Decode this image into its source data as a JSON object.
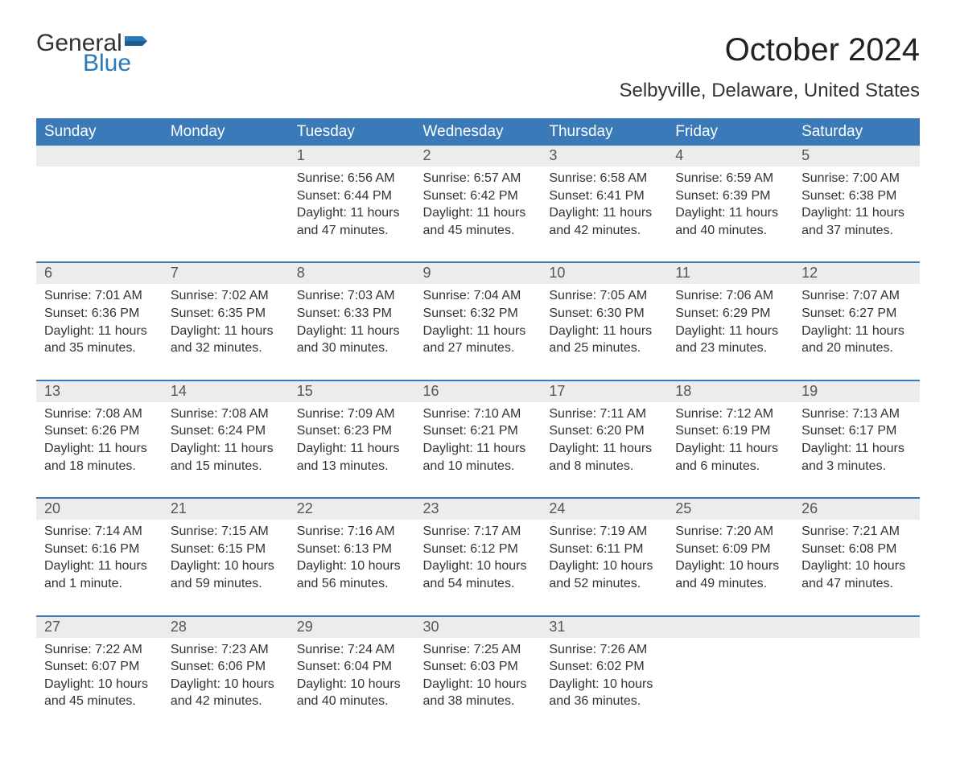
{
  "logo": {
    "text1": "General",
    "text2": "Blue",
    "flag_color": "#2a7ab9",
    "text1_color": "#333333"
  },
  "title": "October 2024",
  "location": "Selbyville, Delaware, United States",
  "colors": {
    "header_bg": "#3b7ab8",
    "header_text": "#ffffff",
    "row_border": "#3b7ab8",
    "daynum_bg": "#ececec",
    "body_text": "#333333"
  },
  "typography": {
    "title_fontsize": 40,
    "location_fontsize": 24,
    "header_fontsize": 19,
    "daynum_fontsize": 18,
    "body_fontsize": 16
  },
  "day_headers": [
    "Sunday",
    "Monday",
    "Tuesday",
    "Wednesday",
    "Thursday",
    "Friday",
    "Saturday"
  ],
  "weeks": [
    [
      null,
      null,
      {
        "n": "1",
        "sunrise": "6:56 AM",
        "sunset": "6:44 PM",
        "daylight": "11 hours and 47 minutes."
      },
      {
        "n": "2",
        "sunrise": "6:57 AM",
        "sunset": "6:42 PM",
        "daylight": "11 hours and 45 minutes."
      },
      {
        "n": "3",
        "sunrise": "6:58 AM",
        "sunset": "6:41 PM",
        "daylight": "11 hours and 42 minutes."
      },
      {
        "n": "4",
        "sunrise": "6:59 AM",
        "sunset": "6:39 PM",
        "daylight": "11 hours and 40 minutes."
      },
      {
        "n": "5",
        "sunrise": "7:00 AM",
        "sunset": "6:38 PM",
        "daylight": "11 hours and 37 minutes."
      }
    ],
    [
      {
        "n": "6",
        "sunrise": "7:01 AM",
        "sunset": "6:36 PM",
        "daylight": "11 hours and 35 minutes."
      },
      {
        "n": "7",
        "sunrise": "7:02 AM",
        "sunset": "6:35 PM",
        "daylight": "11 hours and 32 minutes."
      },
      {
        "n": "8",
        "sunrise": "7:03 AM",
        "sunset": "6:33 PM",
        "daylight": "11 hours and 30 minutes."
      },
      {
        "n": "9",
        "sunrise": "7:04 AM",
        "sunset": "6:32 PM",
        "daylight": "11 hours and 27 minutes."
      },
      {
        "n": "10",
        "sunrise": "7:05 AM",
        "sunset": "6:30 PM",
        "daylight": "11 hours and 25 minutes."
      },
      {
        "n": "11",
        "sunrise": "7:06 AM",
        "sunset": "6:29 PM",
        "daylight": "11 hours and 23 minutes."
      },
      {
        "n": "12",
        "sunrise": "7:07 AM",
        "sunset": "6:27 PM",
        "daylight": "11 hours and 20 minutes."
      }
    ],
    [
      {
        "n": "13",
        "sunrise": "7:08 AM",
        "sunset": "6:26 PM",
        "daylight": "11 hours and 18 minutes."
      },
      {
        "n": "14",
        "sunrise": "7:08 AM",
        "sunset": "6:24 PM",
        "daylight": "11 hours and 15 minutes."
      },
      {
        "n": "15",
        "sunrise": "7:09 AM",
        "sunset": "6:23 PM",
        "daylight": "11 hours and 13 minutes."
      },
      {
        "n": "16",
        "sunrise": "7:10 AM",
        "sunset": "6:21 PM",
        "daylight": "11 hours and 10 minutes."
      },
      {
        "n": "17",
        "sunrise": "7:11 AM",
        "sunset": "6:20 PM",
        "daylight": "11 hours and 8 minutes."
      },
      {
        "n": "18",
        "sunrise": "7:12 AM",
        "sunset": "6:19 PM",
        "daylight": "11 hours and 6 minutes."
      },
      {
        "n": "19",
        "sunrise": "7:13 AM",
        "sunset": "6:17 PM",
        "daylight": "11 hours and 3 minutes."
      }
    ],
    [
      {
        "n": "20",
        "sunrise": "7:14 AM",
        "sunset": "6:16 PM",
        "daylight": "11 hours and 1 minute."
      },
      {
        "n": "21",
        "sunrise": "7:15 AM",
        "sunset": "6:15 PM",
        "daylight": "10 hours and 59 minutes."
      },
      {
        "n": "22",
        "sunrise": "7:16 AM",
        "sunset": "6:13 PM",
        "daylight": "10 hours and 56 minutes."
      },
      {
        "n": "23",
        "sunrise": "7:17 AM",
        "sunset": "6:12 PM",
        "daylight": "10 hours and 54 minutes."
      },
      {
        "n": "24",
        "sunrise": "7:19 AM",
        "sunset": "6:11 PM",
        "daylight": "10 hours and 52 minutes."
      },
      {
        "n": "25",
        "sunrise": "7:20 AM",
        "sunset": "6:09 PM",
        "daylight": "10 hours and 49 minutes."
      },
      {
        "n": "26",
        "sunrise": "7:21 AM",
        "sunset": "6:08 PM",
        "daylight": "10 hours and 47 minutes."
      }
    ],
    [
      {
        "n": "27",
        "sunrise": "7:22 AM",
        "sunset": "6:07 PM",
        "daylight": "10 hours and 45 minutes."
      },
      {
        "n": "28",
        "sunrise": "7:23 AM",
        "sunset": "6:06 PM",
        "daylight": "10 hours and 42 minutes."
      },
      {
        "n": "29",
        "sunrise": "7:24 AM",
        "sunset": "6:04 PM",
        "daylight": "10 hours and 40 minutes."
      },
      {
        "n": "30",
        "sunrise": "7:25 AM",
        "sunset": "6:03 PM",
        "daylight": "10 hours and 38 minutes."
      },
      {
        "n": "31",
        "sunrise": "7:26 AM",
        "sunset": "6:02 PM",
        "daylight": "10 hours and 36 minutes."
      },
      null,
      null
    ]
  ],
  "labels": {
    "sunrise": "Sunrise: ",
    "sunset": "Sunset: ",
    "daylight": "Daylight: "
  }
}
